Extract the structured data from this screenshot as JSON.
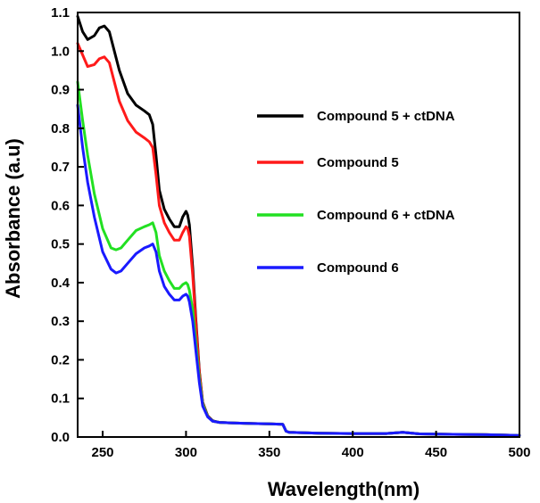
{
  "chart_data": {
    "type": "line",
    "title": "",
    "xlabel": "Wavelength(nm)",
    "ylabel": "Absorbance (a.u)",
    "xlim": [
      235,
      500
    ],
    "ylim": [
      0.0,
      1.1
    ],
    "xticks": [
      "250",
      "300",
      "350",
      "400",
      "450",
      "500"
    ],
    "yticks": [
      "0.0",
      "0.1",
      "0.2",
      "0.3",
      "0.4",
      "0.5",
      "0.6",
      "0.7",
      "0.8",
      "0.9",
      "1.0",
      "1.1"
    ],
    "grid": false,
    "legend_position": "right",
    "series": [
      {
        "name": "Compound 5  + ctDNA",
        "color": "#000000",
        "x": [
          235,
          238,
          241,
          245,
          248,
          251,
          254,
          257,
          260,
          265,
          270,
          275,
          278,
          280,
          282,
          284,
          287,
          290,
          293,
          296,
          298,
          300,
          301,
          302,
          304,
          306,
          308,
          310,
          313,
          316,
          320,
          330,
          340,
          350,
          358,
          360,
          362,
          380,
          400,
          420,
          430,
          440,
          460,
          480,
          500
        ],
        "y": [
          1.09,
          1.05,
          1.03,
          1.04,
          1.06,
          1.065,
          1.05,
          1.0,
          0.95,
          0.89,
          0.86,
          0.845,
          0.835,
          0.81,
          0.73,
          0.64,
          0.59,
          0.565,
          0.545,
          0.545,
          0.57,
          0.585,
          0.575,
          0.55,
          0.44,
          0.3,
          0.17,
          0.09,
          0.055,
          0.042,
          0.038,
          0.036,
          0.035,
          0.034,
          0.033,
          0.015,
          0.012,
          0.01,
          0.009,
          0.009,
          0.012,
          0.008,
          0.007,
          0.006,
          0.004
        ]
      },
      {
        "name": "Compound 5",
        "color": "#ff1a1a",
        "x": [
          235,
          238,
          241,
          245,
          248,
          251,
          254,
          257,
          260,
          265,
          270,
          275,
          278,
          280,
          282,
          284,
          287,
          290,
          293,
          296,
          298,
          300,
          301,
          302,
          304,
          306,
          308,
          310,
          313,
          316,
          320,
          330,
          340,
          350,
          358,
          360,
          362,
          380,
          400,
          420,
          430,
          440,
          460,
          480,
          500
        ],
        "y": [
          1.02,
          0.99,
          0.96,
          0.965,
          0.98,
          0.985,
          0.97,
          0.92,
          0.87,
          0.82,
          0.79,
          0.775,
          0.765,
          0.75,
          0.68,
          0.6,
          0.555,
          0.53,
          0.51,
          0.51,
          0.53,
          0.545,
          0.54,
          0.52,
          0.42,
          0.29,
          0.165,
          0.088,
          0.054,
          0.041,
          0.038,
          0.036,
          0.035,
          0.034,
          0.033,
          0.015,
          0.012,
          0.01,
          0.009,
          0.009,
          0.012,
          0.008,
          0.007,
          0.006,
          0.004
        ]
      },
      {
        "name": "Compound 6  + ctDNA",
        "color": "#22e022",
        "x": [
          235,
          238,
          241,
          245,
          250,
          255,
          258,
          261,
          265,
          270,
          275,
          278,
          280,
          282,
          284,
          287,
          290,
          293,
          296,
          298,
          300,
          301,
          302,
          304,
          306,
          308,
          310,
          313,
          316,
          320,
          330,
          340,
          350,
          358,
          360,
          362,
          380,
          400,
          420,
          430,
          440,
          460,
          480,
          500
        ],
        "y": [
          0.92,
          0.82,
          0.73,
          0.63,
          0.54,
          0.49,
          0.485,
          0.49,
          0.51,
          0.535,
          0.545,
          0.55,
          0.555,
          0.53,
          0.47,
          0.43,
          0.405,
          0.385,
          0.385,
          0.395,
          0.4,
          0.395,
          0.38,
          0.33,
          0.24,
          0.15,
          0.085,
          0.053,
          0.041,
          0.038,
          0.036,
          0.035,
          0.034,
          0.033,
          0.015,
          0.012,
          0.01,
          0.009,
          0.009,
          0.012,
          0.008,
          0.007,
          0.006,
          0.004
        ]
      },
      {
        "name": "Compound 6",
        "color": "#1a1aff",
        "x": [
          235,
          238,
          241,
          245,
          250,
          255,
          258,
          261,
          265,
          270,
          275,
          278,
          280,
          282,
          284,
          287,
          290,
          293,
          296,
          298,
          300,
          301,
          302,
          304,
          306,
          308,
          310,
          313,
          316,
          320,
          330,
          340,
          350,
          358,
          360,
          362,
          380,
          400,
          420,
          430,
          440,
          460,
          480,
          500
        ],
        "y": [
          0.86,
          0.75,
          0.66,
          0.57,
          0.48,
          0.435,
          0.425,
          0.43,
          0.45,
          0.475,
          0.49,
          0.495,
          0.5,
          0.48,
          0.43,
          0.39,
          0.37,
          0.355,
          0.355,
          0.365,
          0.37,
          0.365,
          0.35,
          0.3,
          0.22,
          0.14,
          0.08,
          0.052,
          0.041,
          0.038,
          0.036,
          0.035,
          0.034,
          0.033,
          0.015,
          0.012,
          0.01,
          0.009,
          0.009,
          0.012,
          0.008,
          0.007,
          0.006,
          0.004
        ]
      }
    ]
  }
}
